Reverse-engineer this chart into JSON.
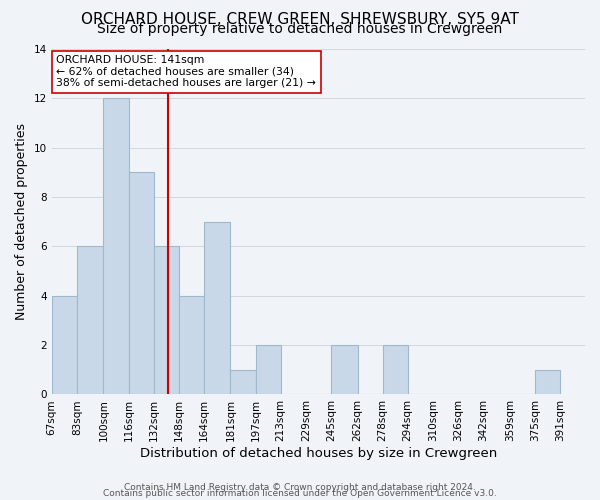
{
  "title": "ORCHARD HOUSE, CREW GREEN, SHREWSBURY, SY5 9AT",
  "subtitle": "Size of property relative to detached houses in Crewgreen",
  "xlabel": "Distribution of detached houses by size in Crewgreen",
  "ylabel": "Number of detached properties",
  "bin_edges": [
    67,
    83,
    100,
    116,
    132,
    148,
    164,
    181,
    197,
    213,
    229,
    245,
    262,
    278,
    294,
    310,
    326,
    342,
    359,
    375,
    391
  ],
  "bar_heights": [
    4,
    6,
    12,
    9,
    6,
    4,
    7,
    1,
    2,
    0,
    0,
    2,
    0,
    2,
    0,
    0,
    0,
    0,
    0,
    1
  ],
  "bar_color": "#c8d8e8",
  "bar_edgecolor": "#a0b8cc",
  "bar_linewidth": 0.8,
  "vline_x": 141,
  "vline_color": "#cc0000",
  "vline_linewidth": 1.5,
  "annotation_title": "ORCHARD HOUSE: 141sqm",
  "annotation_line1": "← 62% of detached houses are smaller (34)",
  "annotation_line2": "38% of semi-detached houses are larger (21) →",
  "annotation_box_color": "#ffffff",
  "annotation_box_edgecolor": "#cc0000",
  "ylim": [
    0,
    14
  ],
  "yticks": [
    0,
    2,
    4,
    6,
    8,
    10,
    12,
    14
  ],
  "grid_color": "#d0d8e0",
  "background_color": "#f0f4f8",
  "footer_line1": "Contains HM Land Registry data © Crown copyright and database right 2024.",
  "footer_line2": "Contains public sector information licensed under the Open Government Licence v3.0.",
  "title_fontsize": 11,
  "subtitle_fontsize": 10,
  "xlabel_fontsize": 9.5,
  "ylabel_fontsize": 9,
  "tick_fontsize": 7.5,
  "footer_fontsize": 6.5
}
